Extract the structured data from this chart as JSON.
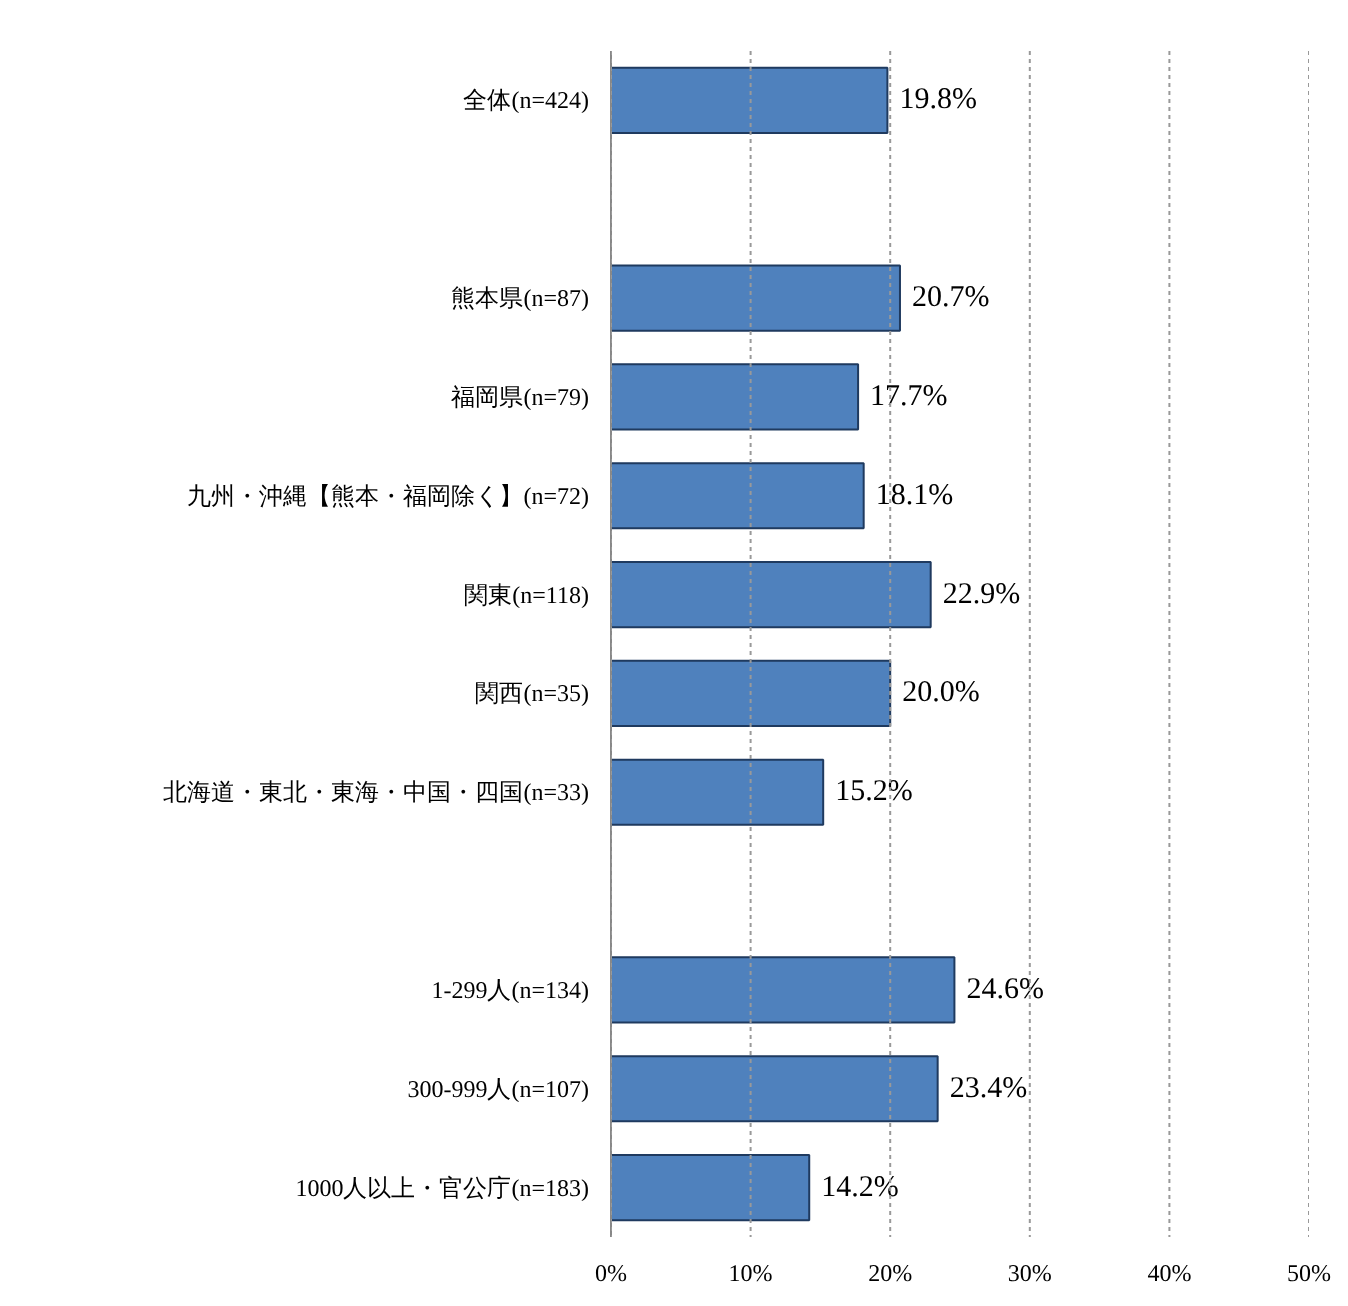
{
  "chart_data": {
    "type": "bar",
    "orientation": "horizontal",
    "categories": [
      "全体(n=424)",
      null,
      "熊本県(n=87)",
      "福岡県(n=79)",
      "九州・沖縄【熊本・福岡除く】(n=72)",
      "関東(n=118)",
      "関西(n=35)",
      "北海道・東北・東海・中国・四国(n=33)",
      null,
      "1-299人(n=134)",
      "300-999人(n=107)",
      "1000人以上・官公庁(n=183)"
    ],
    "values": [
      19.8,
      null,
      20.7,
      17.7,
      18.1,
      22.9,
      20.0,
      15.2,
      null,
      24.6,
      23.4,
      14.2
    ],
    "value_labels": [
      "19.8%",
      null,
      "20.7%",
      "17.7%",
      "18.1%",
      "22.9%",
      "20.0%",
      "15.2%",
      null,
      "24.6%",
      "23.4%",
      "14.2%"
    ],
    "color": "#4f81bd",
    "xlim": [
      0,
      50
    ],
    "xticks": [
      {
        "value": 0,
        "label": "0%"
      },
      {
        "value": 10,
        "label": "10%"
      },
      {
        "value": 20,
        "label": "20%"
      },
      {
        "value": 30,
        "label": "30%"
      },
      {
        "value": 40,
        "label": "40%"
      },
      {
        "value": 50,
        "label": "50%"
      }
    ],
    "grid": "x"
  }
}
